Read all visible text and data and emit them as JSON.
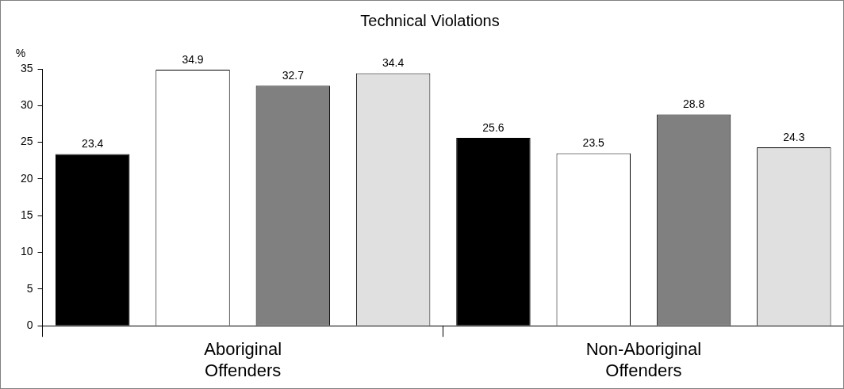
{
  "chart_data": {
    "type": "bar",
    "title": "Technical Violations",
    "ylabel": "%",
    "categories": [
      "Aboriginal Offenders",
      "Non-Aboriginal Offenders"
    ],
    "series": [
      {
        "color": "#000000",
        "values": [
          23.4,
          25.6
        ]
      },
      {
        "color": "#ffffff",
        "values": [
          34.9,
          23.5
        ]
      },
      {
        "color": "#808080",
        "values": [
          32.7,
          28.8
        ]
      },
      {
        "color": "#e0e0e0",
        "values": [
          34.4,
          24.3
        ]
      }
    ],
    "ylim": [
      0,
      35
    ],
    "yticks": [
      0,
      5,
      10,
      15,
      20,
      25,
      30,
      35
    ],
    "grid": false,
    "legend": false,
    "data_labels": true
  }
}
